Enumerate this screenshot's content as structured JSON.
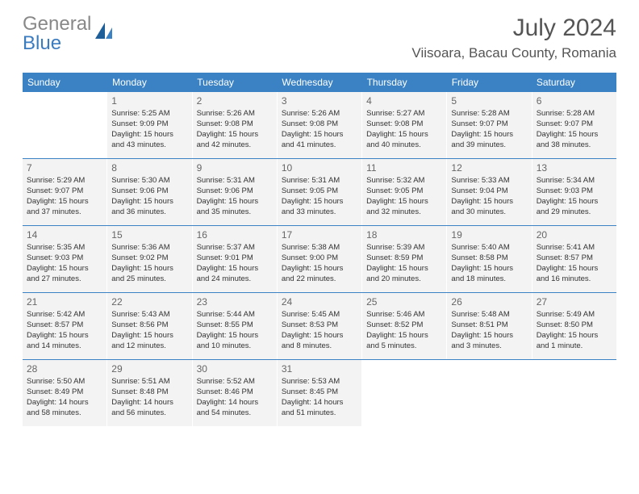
{
  "logo": {
    "text_gray": "General",
    "text_blue": "Blue"
  },
  "title": "July 2024",
  "location": "Viisoara, Bacau County, Romania",
  "colors": {
    "header_bg": "#3b82c4",
    "header_text": "#ffffff",
    "cell_bg": "#f3f3f3",
    "border": "#3b82c4",
    "text": "#333333",
    "title_text": "#555555",
    "logo_gray": "#888888",
    "logo_blue": "#3b7bbf"
  },
  "day_names": [
    "Sunday",
    "Monday",
    "Tuesday",
    "Wednesday",
    "Thursday",
    "Friday",
    "Saturday"
  ],
  "weeks": [
    [
      null,
      {
        "n": "1",
        "sr": "5:25 AM",
        "ss": "9:09 PM",
        "dl": "15 hours and 43 minutes."
      },
      {
        "n": "2",
        "sr": "5:26 AM",
        "ss": "9:08 PM",
        "dl": "15 hours and 42 minutes."
      },
      {
        "n": "3",
        "sr": "5:26 AM",
        "ss": "9:08 PM",
        "dl": "15 hours and 41 minutes."
      },
      {
        "n": "4",
        "sr": "5:27 AM",
        "ss": "9:08 PM",
        "dl": "15 hours and 40 minutes."
      },
      {
        "n": "5",
        "sr": "5:28 AM",
        "ss": "9:07 PM",
        "dl": "15 hours and 39 minutes."
      },
      {
        "n": "6",
        "sr": "5:28 AM",
        "ss": "9:07 PM",
        "dl": "15 hours and 38 minutes."
      }
    ],
    [
      {
        "n": "7",
        "sr": "5:29 AM",
        "ss": "9:07 PM",
        "dl": "15 hours and 37 minutes."
      },
      {
        "n": "8",
        "sr": "5:30 AM",
        "ss": "9:06 PM",
        "dl": "15 hours and 36 minutes."
      },
      {
        "n": "9",
        "sr": "5:31 AM",
        "ss": "9:06 PM",
        "dl": "15 hours and 35 minutes."
      },
      {
        "n": "10",
        "sr": "5:31 AM",
        "ss": "9:05 PM",
        "dl": "15 hours and 33 minutes."
      },
      {
        "n": "11",
        "sr": "5:32 AM",
        "ss": "9:05 PM",
        "dl": "15 hours and 32 minutes."
      },
      {
        "n": "12",
        "sr": "5:33 AM",
        "ss": "9:04 PM",
        "dl": "15 hours and 30 minutes."
      },
      {
        "n": "13",
        "sr": "5:34 AM",
        "ss": "9:03 PM",
        "dl": "15 hours and 29 minutes."
      }
    ],
    [
      {
        "n": "14",
        "sr": "5:35 AM",
        "ss": "9:03 PM",
        "dl": "15 hours and 27 minutes."
      },
      {
        "n": "15",
        "sr": "5:36 AM",
        "ss": "9:02 PM",
        "dl": "15 hours and 25 minutes."
      },
      {
        "n": "16",
        "sr": "5:37 AM",
        "ss": "9:01 PM",
        "dl": "15 hours and 24 minutes."
      },
      {
        "n": "17",
        "sr": "5:38 AM",
        "ss": "9:00 PM",
        "dl": "15 hours and 22 minutes."
      },
      {
        "n": "18",
        "sr": "5:39 AM",
        "ss": "8:59 PM",
        "dl": "15 hours and 20 minutes."
      },
      {
        "n": "19",
        "sr": "5:40 AM",
        "ss": "8:58 PM",
        "dl": "15 hours and 18 minutes."
      },
      {
        "n": "20",
        "sr": "5:41 AM",
        "ss": "8:57 PM",
        "dl": "15 hours and 16 minutes."
      }
    ],
    [
      {
        "n": "21",
        "sr": "5:42 AM",
        "ss": "8:57 PM",
        "dl": "15 hours and 14 minutes."
      },
      {
        "n": "22",
        "sr": "5:43 AM",
        "ss": "8:56 PM",
        "dl": "15 hours and 12 minutes."
      },
      {
        "n": "23",
        "sr": "5:44 AM",
        "ss": "8:55 PM",
        "dl": "15 hours and 10 minutes."
      },
      {
        "n": "24",
        "sr": "5:45 AM",
        "ss": "8:53 PM",
        "dl": "15 hours and 8 minutes."
      },
      {
        "n": "25",
        "sr": "5:46 AM",
        "ss": "8:52 PM",
        "dl": "15 hours and 5 minutes."
      },
      {
        "n": "26",
        "sr": "5:48 AM",
        "ss": "8:51 PM",
        "dl": "15 hours and 3 minutes."
      },
      {
        "n": "27",
        "sr": "5:49 AM",
        "ss": "8:50 PM",
        "dl": "15 hours and 1 minute."
      }
    ],
    [
      {
        "n": "28",
        "sr": "5:50 AM",
        "ss": "8:49 PM",
        "dl": "14 hours and 58 minutes."
      },
      {
        "n": "29",
        "sr": "5:51 AM",
        "ss": "8:48 PM",
        "dl": "14 hours and 56 minutes."
      },
      {
        "n": "30",
        "sr": "5:52 AM",
        "ss": "8:46 PM",
        "dl": "14 hours and 54 minutes."
      },
      {
        "n": "31",
        "sr": "5:53 AM",
        "ss": "8:45 PM",
        "dl": "14 hours and 51 minutes."
      },
      null,
      null,
      null
    ]
  ],
  "labels": {
    "sunrise": "Sunrise:",
    "sunset": "Sunset:",
    "daylight": "Daylight:"
  }
}
